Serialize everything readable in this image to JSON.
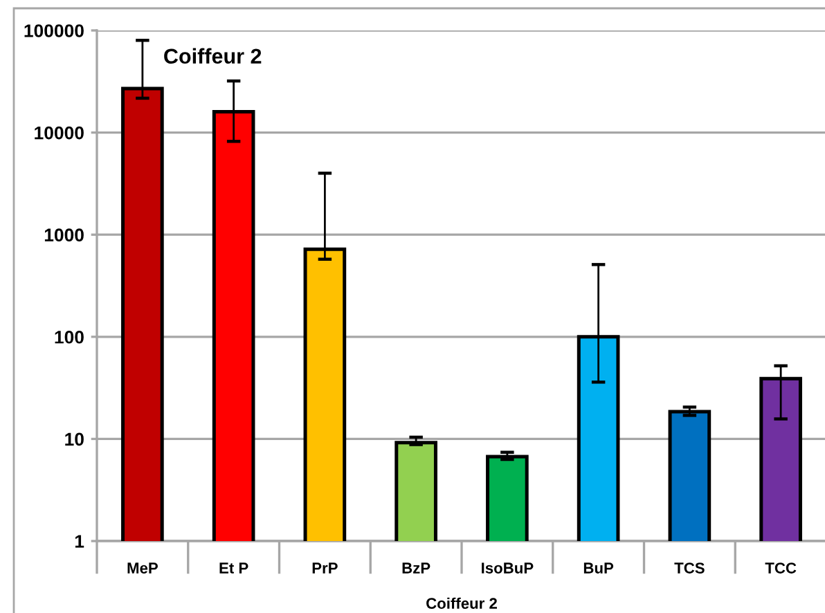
{
  "chart_data": {
    "type": "bar",
    "title": "Coiffeur 2",
    "xlabel": "Coiffeur 2",
    "categories": [
      "MeP",
      "Et P",
      "PrP",
      "BzP",
      "IsoBuP",
      "BuP",
      "TCS",
      "TCC"
    ],
    "values": [
      27000,
      16000,
      720,
      9.2,
      6.7,
      100,
      18.5,
      39
    ],
    "colors": [
      "#c00000",
      "#ff0000",
      "#ffc000",
      "#92d050",
      "#00b050",
      "#00b0f0",
      "#0070c0",
      "#7030a0"
    ],
    "errors": [
      [
        21700,
        80000
      ],
      [
        8200,
        32000
      ],
      [
        575,
        4000
      ],
      [
        8.8,
        10.4
      ],
      [
        6.3,
        7.4
      ],
      [
        36,
        510
      ],
      [
        17,
        20.5
      ],
      [
        15.7,
        52
      ]
    ],
    "log": "y",
    "ylim": [
      1,
      100000
    ],
    "yticks": [
      1,
      10,
      100,
      1000,
      10000,
      100000
    ],
    "grid": "y"
  }
}
